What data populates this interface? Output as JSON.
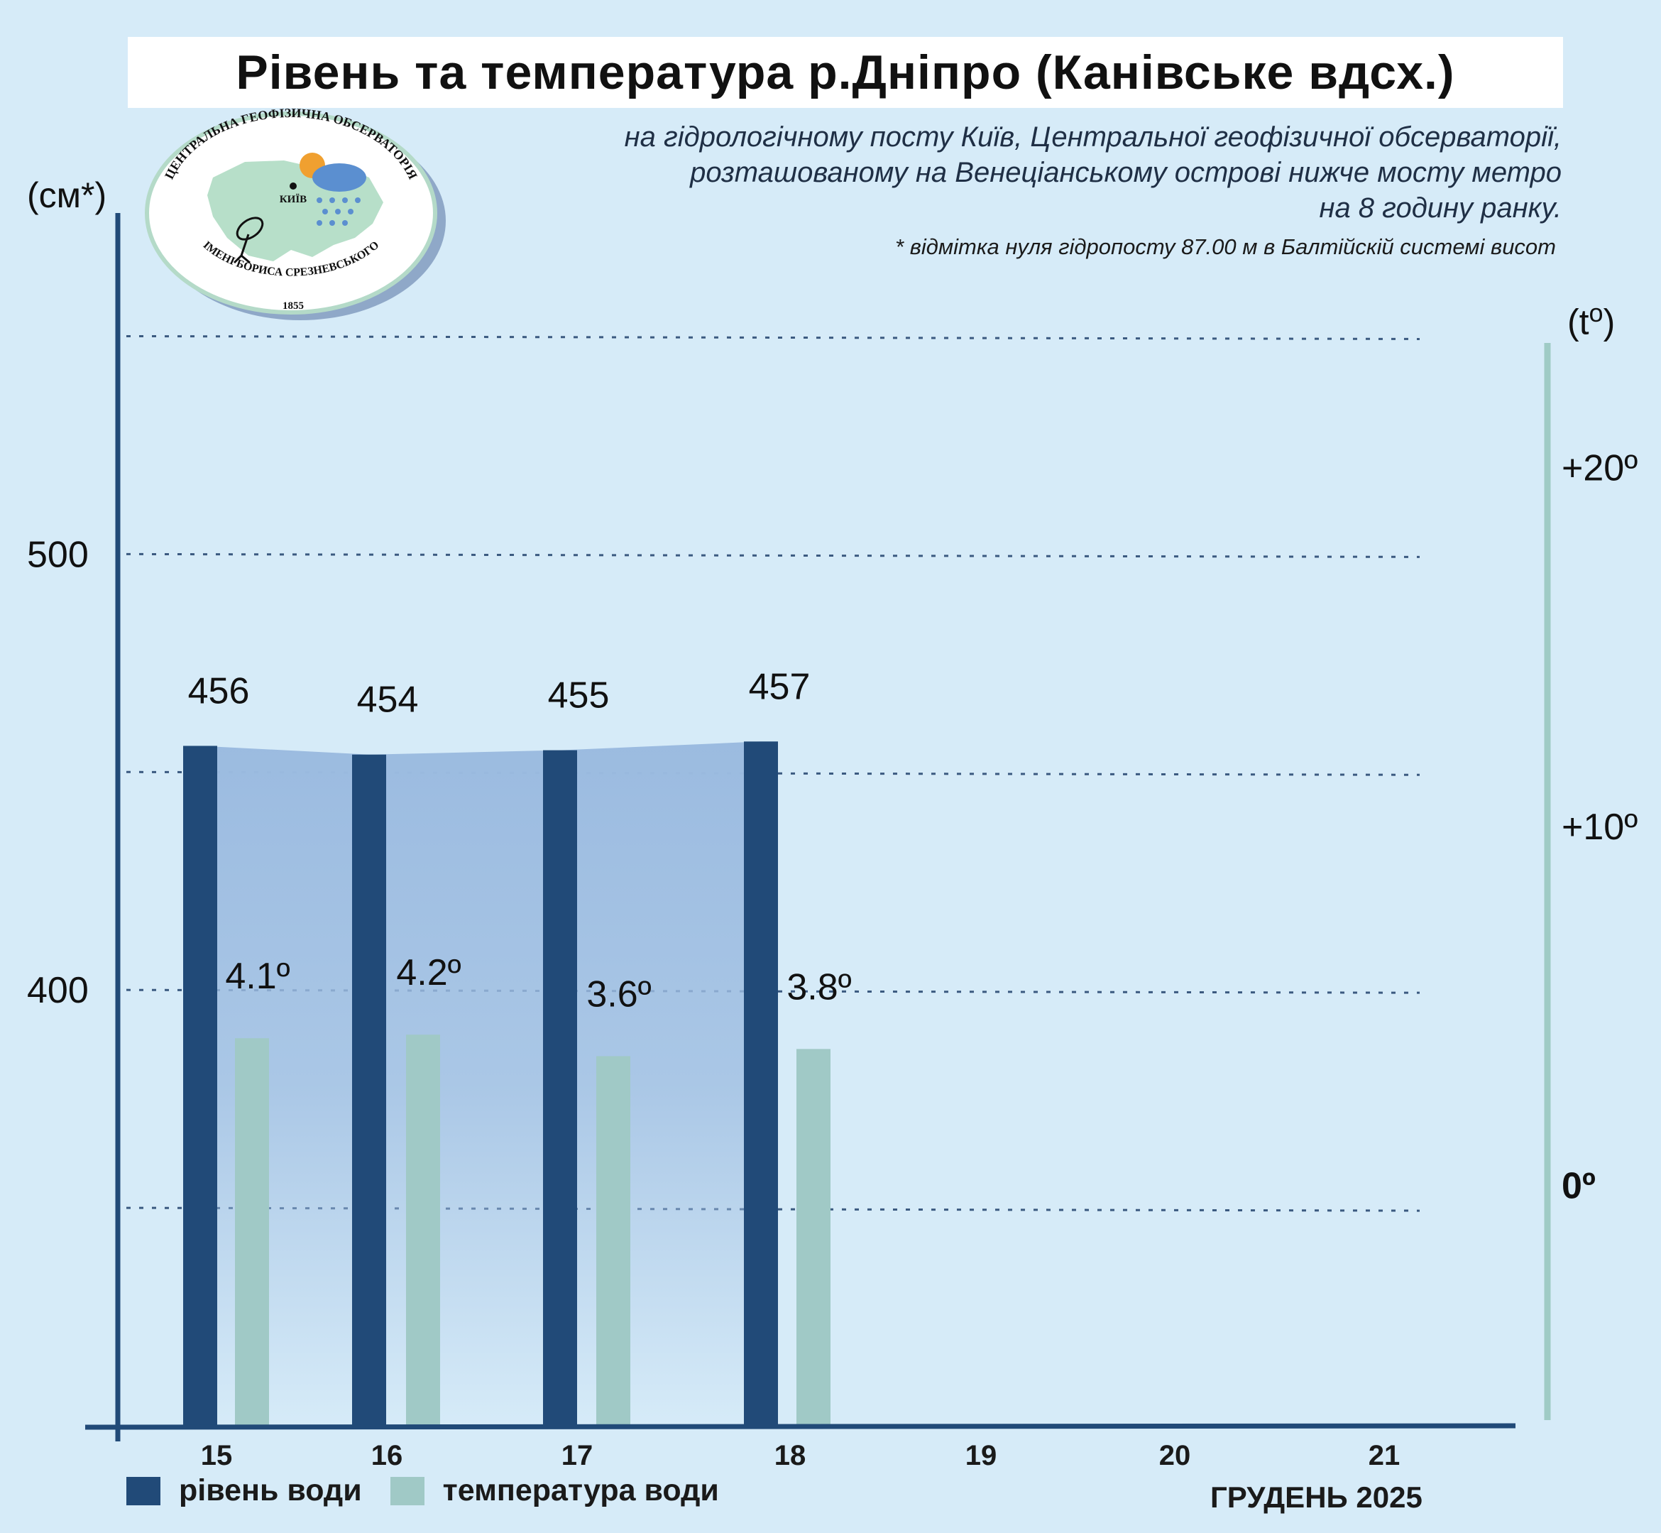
{
  "title": "Рівень та температура р.Дніпро (Канівське вдсх.)",
  "subtitle_lines": [
    "на гідрологічному посту Київ, Центральної геофізичної обсерваторії,",
    "розташованому на Венеціанському острові нижче мосту метро",
    "на 8 годину ранку."
  ],
  "note": "* відмітка нуля гідропосту 87.00 м в Балтійскій системі висот",
  "logo": {
    "top_text": "ЦЕНТРАЛЬНА ГЕОФІЗИЧНА ОБСЕРВАТОРІЯ",
    "city": "КИЇВ",
    "bottom_text": "ІМЕНІ БОРИСА СРЕЗНЕВСЬКОГО",
    "year": "1855"
  },
  "left_axis_unit": "(см*)",
  "right_axis_unit_base": "(t",
  "right_axis_unit_sup": "o",
  "right_axis_unit_close": ")",
  "legend": {
    "level": "рівень води",
    "temperature": "температура води"
  },
  "month_label": "ГРУДЕНЬ 2025",
  "colors": {
    "background": "#d6ebf8",
    "level_bar": "#214a78",
    "temperature_bar": "#a0c9c6",
    "level_area": "#9bbbe0",
    "axis_left": "#214a78",
    "axis_right": "#9fcbc5",
    "grid": "#3b5a80"
  },
  "chart_data": {
    "type": "bar",
    "categories": [
      "15",
      "16",
      "17",
      "18",
      "19",
      "20",
      "21"
    ],
    "series": [
      {
        "name": "рівень води",
        "axis": "left",
        "values": [
          456,
          454,
          455,
          457,
          null,
          null,
          null
        ],
        "labels": [
          "456",
          "454",
          "455",
          "457",
          "",
          "",
          ""
        ]
      },
      {
        "name": "температура води",
        "axis": "right",
        "values": [
          4.1,
          4.2,
          3.6,
          3.8,
          null,
          null,
          null
        ],
        "labels": [
          "4.1º",
          "4.2º",
          "3.6º",
          "3.8º",
          "",
          "",
          ""
        ]
      }
    ],
    "left_axis": {
      "ticks": [
        400,
        500
      ],
      "tick_labels": [
        "400",
        "500"
      ],
      "gridlines": [
        350,
        400,
        450,
        500,
        550
      ],
      "range": [
        300,
        575
      ]
    },
    "right_axis": {
      "ticks": [
        0,
        10,
        20
      ],
      "tick_labels": [
        "0º",
        "+10º",
        "+20º"
      ],
      "range": [
        -6.7,
        26.7
      ]
    },
    "grid": true,
    "legend_position": "bottom-left"
  }
}
